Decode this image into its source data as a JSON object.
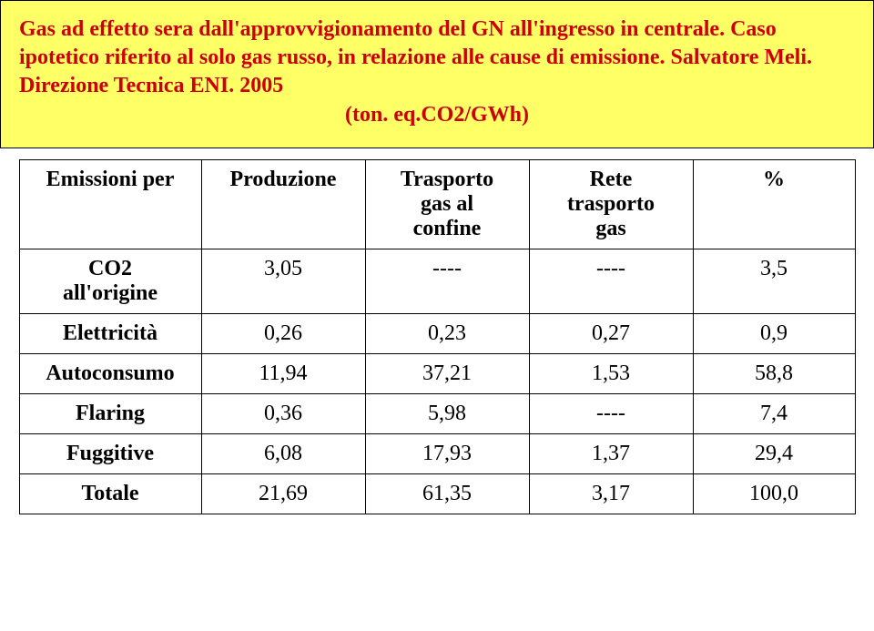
{
  "header": {
    "line1": "Gas ad effetto sera  dall'approvvigionamento del GN all'ingresso in centrale. Caso ipotetico riferito al solo gas russo, in relazione alle cause di emissione. Salvatore Meli. Direzione Tecnica ENI. 2005",
    "line2": "(ton. eq.CO2/GWh)"
  },
  "table": {
    "columns": [
      {
        "label_line1": "Emissioni per",
        "label_line2": ""
      },
      {
        "label_line1": "Produzione",
        "label_line2": ""
      },
      {
        "label_line1": "Trasporto",
        "label_line2": "gas al",
        "label_line3": "confine"
      },
      {
        "label_line1": "Rete",
        "label_line2": "trasporto",
        "label_line3": "gas"
      },
      {
        "label_line1": "%",
        "label_line2": ""
      }
    ],
    "rows": [
      {
        "label_line1": "CO2",
        "label_line2": "all'origine",
        "c1": "3,05",
        "c2": "----",
        "c3": "----",
        "c4": "3,5"
      },
      {
        "label_line1": "Elettricità",
        "label_line2": "",
        "c1": "0,26",
        "c2": "0,23",
        "c3": "0,27",
        "c4": "0,9"
      },
      {
        "label_line1": "Autoconsumo",
        "label_line2": "",
        "c1": "11,94",
        "c2": "37,21",
        "c3": "1,53",
        "c4": "58,8"
      },
      {
        "label_line1": "Flaring",
        "label_line2": "",
        "c1": "0,36",
        "c2": "5,98",
        "c3": "----",
        "c4": "7,4"
      },
      {
        "label_line1": "Fuggitive",
        "label_line2": "",
        "c1": "6,08",
        "c2": "17,93",
        "c3": "1,37",
        "c4": "29,4"
      },
      {
        "label_line1": "Totale",
        "label_line2": "",
        "c1": "21,69",
        "c2": "61,35",
        "c3": "3,17",
        "c4": "100,0"
      }
    ],
    "colors": {
      "header_bg": "#ffff66",
      "header_text": "#cc0000",
      "border": "#000000",
      "cell_text": "#000000"
    }
  }
}
